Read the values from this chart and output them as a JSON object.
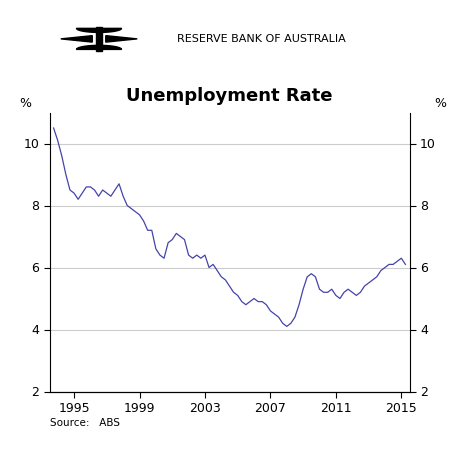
{
  "title": "Unemployment Rate",
  "source_text": "Source:   ABS",
  "header_text": "RESERVE BANK OF AUSTRALIA",
  "ylabel_left": "%",
  "ylabel_right": "%",
  "ylim": [
    2,
    11
  ],
  "yticks": [
    2,
    4,
    6,
    8,
    10
  ],
  "xlim_start": 1993.5,
  "xlim_end": 2015.5,
  "xticks": [
    1995,
    1999,
    2003,
    2007,
    2011,
    2015
  ],
  "line_color": "#4444aa",
  "background_color": "#ffffff",
  "grid_color": "#cccccc",
  "title_fontsize": 13,
  "tick_fontsize": 9,
  "data": {
    "dates": [
      1993.75,
      1994.0,
      1994.25,
      1994.5,
      1994.75,
      1995.0,
      1995.25,
      1995.5,
      1995.75,
      1996.0,
      1996.25,
      1996.5,
      1996.75,
      1997.0,
      1997.25,
      1997.5,
      1997.75,
      1998.0,
      1998.25,
      1998.5,
      1998.75,
      1999.0,
      1999.25,
      1999.5,
      1999.75,
      2000.0,
      2000.25,
      2000.5,
      2000.75,
      2001.0,
      2001.25,
      2001.5,
      2001.75,
      2002.0,
      2002.25,
      2002.5,
      2002.75,
      2003.0,
      2003.25,
      2003.5,
      2003.75,
      2004.0,
      2004.25,
      2004.5,
      2004.75,
      2005.0,
      2005.25,
      2005.5,
      2005.75,
      2006.0,
      2006.25,
      2006.5,
      2006.75,
      2007.0,
      2007.25,
      2007.5,
      2007.75,
      2008.0,
      2008.25,
      2008.5,
      2008.75,
      2009.0,
      2009.25,
      2009.5,
      2009.75,
      2010.0,
      2010.25,
      2010.5,
      2010.75,
      2011.0,
      2011.25,
      2011.5,
      2011.75,
      2012.0,
      2012.25,
      2012.5,
      2012.75,
      2013.0,
      2013.25,
      2013.5,
      2013.75,
      2014.0,
      2014.25,
      2014.5,
      2014.75,
      2015.0,
      2015.25
    ],
    "values": [
      10.5,
      10.1,
      9.6,
      9.0,
      8.5,
      8.4,
      8.2,
      8.4,
      8.6,
      8.6,
      8.5,
      8.3,
      8.5,
      8.4,
      8.3,
      8.5,
      8.7,
      8.3,
      8.0,
      7.9,
      7.8,
      7.7,
      7.5,
      7.2,
      7.2,
      6.6,
      6.4,
      6.3,
      6.8,
      6.9,
      7.1,
      7.0,
      6.9,
      6.4,
      6.3,
      6.4,
      6.3,
      6.4,
      6.0,
      6.1,
      5.9,
      5.7,
      5.6,
      5.4,
      5.2,
      5.1,
      4.9,
      4.8,
      4.9,
      5.0,
      4.9,
      4.9,
      4.8,
      4.6,
      4.5,
      4.4,
      4.2,
      4.1,
      4.2,
      4.4,
      4.8,
      5.3,
      5.7,
      5.8,
      5.7,
      5.3,
      5.2,
      5.2,
      5.3,
      5.1,
      5.0,
      5.2,
      5.3,
      5.2,
      5.1,
      5.2,
      5.4,
      5.5,
      5.6,
      5.7,
      5.9,
      6.0,
      6.1,
      6.1,
      6.2,
      6.3,
      6.1
    ]
  }
}
